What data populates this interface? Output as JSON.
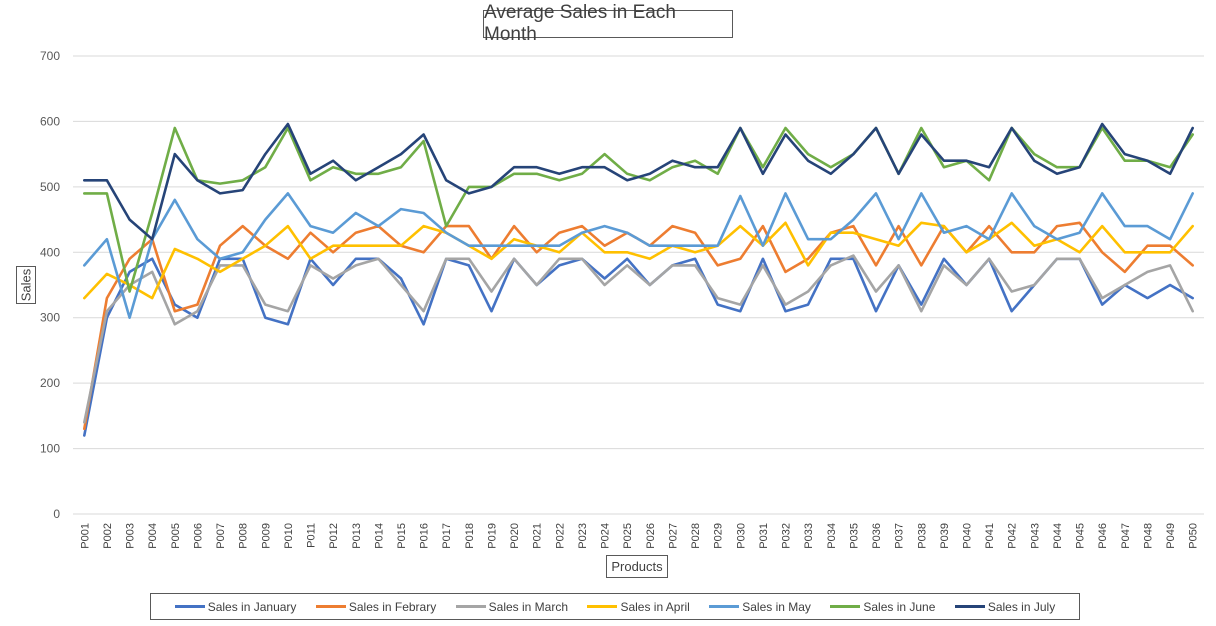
{
  "chart_data": {
    "type": "line",
    "title": "Average Sales in Each Month",
    "xlabel": "Products",
    "ylabel": "Sales",
    "ylim": [
      0,
      700
    ],
    "yticks": [
      0,
      100,
      200,
      300,
      400,
      500,
      600,
      700
    ],
    "grid": "horizontal",
    "legend_position": "bottom",
    "categories": [
      "P001",
      "P002",
      "P003",
      "P004",
      "P005",
      "P006",
      "P007",
      "P008",
      "P009",
      "P010",
      "P011",
      "P012",
      "P013",
      "P014",
      "P015",
      "P016",
      "P017",
      "P018",
      "P019",
      "P020",
      "P021",
      "P022",
      "P023",
      "P024",
      "P025",
      "P026",
      "P027",
      "P028",
      "P029",
      "P030",
      "P031",
      "P032",
      "P033",
      "P034",
      "P035",
      "P036",
      "P037",
      "P038",
      "P039",
      "P040",
      "P041",
      "P042",
      "P043",
      "P044",
      "P045",
      "P046",
      "P047",
      "P048",
      "P049",
      "P050"
    ],
    "series": [
      {
        "name": "Sales in January",
        "color": "#4472C4",
        "values": [
          120,
          300,
          370,
          390,
          320,
          300,
          390,
          390,
          300,
          290,
          390,
          350,
          390,
          390,
          360,
          290,
          390,
          380,
          310,
          390,
          350,
          380,
          390,
          360,
          390,
          350,
          380,
          390,
          320,
          310,
          390,
          310,
          320,
          390,
          390,
          310,
          380,
          320,
          390,
          350,
          390,
          310,
          350,
          390,
          390,
          320,
          350,
          330,
          350,
          330
        ]
      },
      {
        "name": "Sales in Febrary",
        "color": "#ED7D31",
        "values": [
          130,
          330,
          390,
          420,
          310,
          320,
          410,
          440,
          410,
          390,
          430,
          400,
          430,
          440,
          410,
          400,
          440,
          440,
          390,
          440,
          400,
          430,
          440,
          410,
          430,
          410,
          440,
          430,
          380,
          390,
          440,
          370,
          390,
          430,
          440,
          380,
          440,
          380,
          440,
          400,
          440,
          400,
          400,
          440,
          445,
          400,
          370,
          410,
          410,
          380
        ]
      },
      {
        "name": "Sales in March",
        "color": "#A5A5A5",
        "values": [
          140,
          310,
          350,
          370,
          290,
          310,
          380,
          380,
          320,
          310,
          380,
          360,
          380,
          390,
          350,
          310,
          390,
          390,
          340,
          390,
          350,
          390,
          390,
          350,
          380,
          350,
          380,
          380,
          330,
          320,
          380,
          320,
          340,
          380,
          395,
          340,
          380,
          310,
          380,
          350,
          390,
          340,
          350,
          390,
          390,
          330,
          350,
          370,
          380,
          310
        ]
      },
      {
        "name": "Sales in April",
        "color": "#FFC000",
        "values": [
          330,
          367,
          350,
          330,
          405,
          390,
          370,
          390,
          410,
          440,
          390,
          410,
          410,
          410,
          410,
          440,
          430,
          410,
          390,
          420,
          410,
          400,
          430,
          400,
          400,
          390,
          410,
          400,
          410,
          440,
          410,
          445,
          380,
          430,
          430,
          420,
          410,
          445,
          440,
          400,
          420,
          445,
          410,
          420,
          400,
          440,
          400,
          400,
          400,
          440
        ]
      },
      {
        "name": "Sales in May",
        "color": "#5B9BD5",
        "values": [
          380,
          420,
          300,
          420,
          480,
          420,
          390,
          400,
          450,
          490,
          440,
          430,
          460,
          440,
          466,
          460,
          430,
          410,
          410,
          410,
          410,
          410,
          430,
          440,
          430,
          410,
          410,
          410,
          410,
          486,
          410,
          490,
          420,
          420,
          450,
          490,
          420,
          490,
          430,
          440,
          420,
          490,
          440,
          420,
          430,
          490,
          440,
          440,
          420,
          490
        ]
      },
      {
        "name": "Sales in June",
        "color": "#70AD47",
        "values": [
          490,
          490,
          340,
          460,
          590,
          510,
          505,
          510,
          530,
          590,
          510,
          530,
          520,
          520,
          530,
          570,
          440,
          500,
          500,
          520,
          520,
          510,
          520,
          550,
          520,
          510,
          530,
          540,
          520,
          590,
          530,
          590,
          550,
          530,
          550,
          590,
          520,
          590,
          530,
          540,
          510,
          590,
          550,
          530,
          530,
          590,
          540,
          540,
          530,
          580
        ]
      },
      {
        "name": "Sales in July",
        "color": "#264478",
        "values": [
          510,
          510,
          450,
          420,
          550,
          510,
          490,
          495,
          550,
          596,
          520,
          540,
          510,
          530,
          550,
          580,
          510,
          490,
          500,
          530,
          530,
          520,
          530,
          530,
          510,
          520,
          540,
          530,
          530,
          590,
          520,
          580,
          540,
          520,
          550,
          590,
          520,
          580,
          540,
          540,
          530,
          590,
          540,
          520,
          530,
          596,
          550,
          540,
          520,
          590
        ]
      }
    ]
  }
}
